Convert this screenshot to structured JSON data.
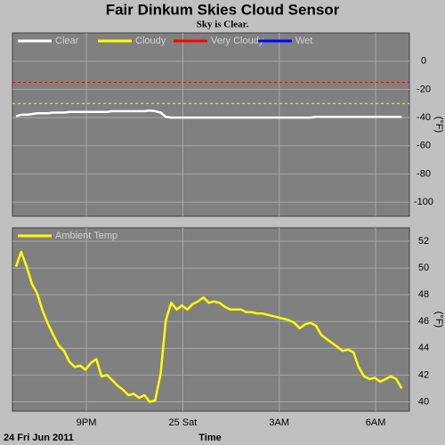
{
  "title": "Fair Dinkum Skies Cloud Sensor",
  "subtitle": "Sky is Clear.",
  "chart_data": [
    {
      "type": "line",
      "legend": [
        {
          "name": "Clear",
          "color": "#ffffff"
        },
        {
          "name": "Cloudy",
          "color": "#ffff00"
        },
        {
          "name": "Very Cloudy",
          "color": "#ff0000"
        },
        {
          "name": "Wet",
          "color": "#0000ff"
        }
      ],
      "thresholds": [
        {
          "value": -30,
          "color": "#ffff00"
        },
        {
          "value": -15,
          "color": "#ff0000"
        }
      ],
      "x": [
        18.81,
        18.97,
        19.14,
        19.31,
        19.47,
        19.64,
        19.81,
        19.97,
        20.14,
        20.31,
        20.47,
        20.64,
        20.81,
        20.97,
        21.14,
        21.31,
        21.47,
        21.64,
        21.81,
        21.97,
        22.14,
        22.31,
        22.47,
        22.64,
        22.81,
        22.97,
        23.14,
        23.31,
        23.47,
        23.64,
        23.81,
        23.97,
        24.14,
        24.31,
        24.47,
        24.64,
        24.81,
        24.97,
        25.14,
        25.31,
        25.47,
        25.64,
        25.81,
        25.97,
        26.14,
        26.31,
        26.47,
        26.64,
        26.81,
        26.97,
        27.14,
        27.31,
        27.47,
        27.64,
        27.81,
        27.97,
        28.14,
        28.31,
        28.47,
        28.64,
        28.81,
        28.97,
        29.14,
        29.31,
        29.47,
        29.64,
        29.81,
        29.97,
        30.14,
        30.31,
        30.47,
        30.64,
        30.81
      ],
      "series": [
        {
          "name": "Clear",
          "color": "#ffffff",
          "values": [
            -39,
            -38,
            -38,
            -37.5,
            -37,
            -37,
            -37,
            -36.5,
            -36.5,
            -36.5,
            -36,
            -36,
            -36,
            -36,
            -36,
            -36,
            -36,
            -36,
            -35.5,
            -35.5,
            -35.5,
            -35.5,
            -35.5,
            -35.5,
            -35.5,
            -35,
            -35.5,
            -36.5,
            -39.5,
            -40,
            -40,
            -40,
            -40,
            -40,
            -40,
            -40,
            -40,
            -40,
            -40,
            -40,
            -40,
            -40,
            -40,
            -40,
            -40,
            -40,
            -40,
            -40,
            -40,
            -40,
            -40,
            -40,
            -40,
            -40,
            -40,
            -40,
            -39.5,
            -39.5,
            -39.5,
            -39.5,
            -39.5,
            -39.5,
            -39.5,
            -39.5,
            -39.5,
            -39.5,
            -39.5,
            -39.5,
            -39.5,
            -39.5,
            -39.5,
            -39.5,
            -39.5
          ]
        }
      ],
      "xlim": [
        18.7,
        31.05
      ],
      "xticks": [
        21,
        24,
        27,
        30
      ],
      "ylim": [
        -110,
        20
      ],
      "yticks": [
        0,
        -20,
        -40,
        -60,
        -80,
        -100
      ],
      "ylabel": "(°F)",
      "grid": true
    },
    {
      "type": "line",
      "x": [
        18.81,
        18.97,
        19.14,
        19.31,
        19.47,
        19.64,
        19.81,
        19.97,
        20.14,
        20.31,
        20.47,
        20.64,
        20.81,
        20.97,
        21.14,
        21.31,
        21.47,
        21.64,
        21.81,
        21.97,
        22.14,
        22.31,
        22.47,
        22.64,
        22.81,
        22.97,
        23.14,
        23.31,
        23.47,
        23.64,
        23.81,
        23.97,
        24.14,
        24.31,
        24.47,
        24.64,
        24.81,
        24.97,
        25.14,
        25.31,
        25.47,
        25.64,
        25.81,
        25.97,
        26.14,
        26.31,
        26.47,
        26.64,
        26.81,
        26.97,
        27.14,
        27.31,
        27.47,
        27.64,
        27.81,
        27.97,
        28.14,
        28.31,
        28.47,
        28.64,
        28.81,
        28.97,
        29.14,
        29.31,
        29.47,
        29.64,
        29.81,
        29.97,
        30.14,
        30.31,
        30.47,
        30.64,
        30.81
      ],
      "series": [
        {
          "name": "Ambient Temp",
          "color": "#ffff00",
          "values": [
            50.1,
            51.2,
            50.1,
            48.8,
            48.1,
            46.8,
            45.8,
            45.0,
            44.2,
            43.8,
            43.0,
            42.6,
            42.7,
            42.4,
            42.9,
            43.2,
            41.9,
            42.0,
            41.6,
            41.2,
            40.9,
            40.5,
            40.6,
            40.3,
            40.5,
            40.0,
            40.1,
            42.1,
            46.1,
            47.4,
            46.9,
            47.2,
            46.9,
            47.3,
            47.5,
            47.8,
            47.4,
            47.5,
            47.4,
            47.1,
            46.9,
            46.9,
            46.9,
            46.7,
            46.7,
            46.6,
            46.6,
            46.5,
            46.4,
            46.3,
            46.2,
            46.1,
            45.9,
            45.5,
            45.8,
            45.9,
            45.7,
            45.0,
            44.7,
            44.4,
            44.1,
            43.8,
            43.9,
            43.7,
            42.6,
            41.9,
            41.7,
            41.8,
            41.5,
            41.7,
            41.9,
            41.7,
            41.0
          ]
        }
      ],
      "xlim": [
        18.7,
        31.05
      ],
      "xticks": [
        {
          "value": 21,
          "label": "9PM"
        },
        {
          "value": 24,
          "label": "25 Sat"
        },
        {
          "value": 27,
          "label": "3AM"
        },
        {
          "value": 30,
          "label": "6AM"
        }
      ],
      "ylim": [
        39.3,
        53
      ],
      "yticks": [
        40,
        42,
        44,
        46,
        48,
        50,
        52
      ],
      "ylabel": "(°F)",
      "xlabel": "Time",
      "date_label": "24 Fri Jun 2011",
      "grid": true
    }
  ]
}
